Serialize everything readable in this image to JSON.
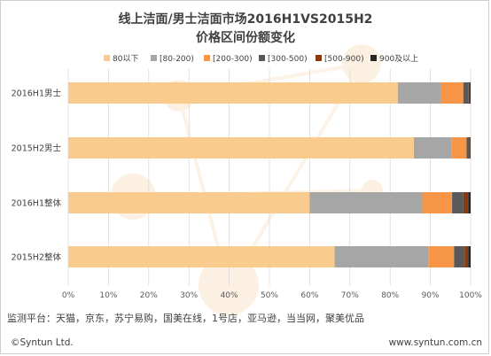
{
  "chart_data": {
    "type": "bar",
    "orientation": "horizontal",
    "stacked": true,
    "title": "线上洁面/男士洁面市场2016H1VS2015H2",
    "subtitle": "价格区间份额变化",
    "categories": [
      "2016H1男士",
      "2015H2男士",
      "2016H1整体",
      "2015H2整体"
    ],
    "xlim": [
      0,
      100
    ],
    "x_ticks": [
      "0%",
      "10%",
      "20%",
      "30%",
      "40%",
      "50%",
      "60%",
      "70%",
      "80%",
      "90%",
      "100%"
    ],
    "grid": true,
    "legend_position": "top",
    "series": [
      {
        "name": "80以下",
        "color": "#f9cc8e",
        "values": [
          81.9,
          85.9,
          60.0,
          66.2
        ]
      },
      {
        "name": "[80-200)",
        "color": "#a6a6a6",
        "values": [
          10.8,
          9.4,
          28.0,
          23.3
        ]
      },
      {
        "name": "[200-300)",
        "color": "#f79646",
        "values": [
          5.5,
          3.7,
          7.4,
          6.4
        ]
      },
      {
        "name": "[300-500)",
        "color": "#595959",
        "values": [
          1.3,
          0.8,
          2.8,
          2.6
        ]
      },
      {
        "name": "[500-900)",
        "color": "#8b3a0f",
        "values": [
          0.3,
          0.1,
          1.2,
          0.9
        ]
      },
      {
        "name": "900及以上",
        "color": "#262626",
        "values": [
          0.2,
          0.1,
          0.6,
          0.6
        ]
      }
    ]
  },
  "footer": {
    "platforms": "监测平台：天猫，京东，苏宁易购，国美在线，1号店，亚马逊，当当网，聚美优品",
    "copyright": "©Syntun Ltd.",
    "website": "www.syntun.com.cn"
  }
}
